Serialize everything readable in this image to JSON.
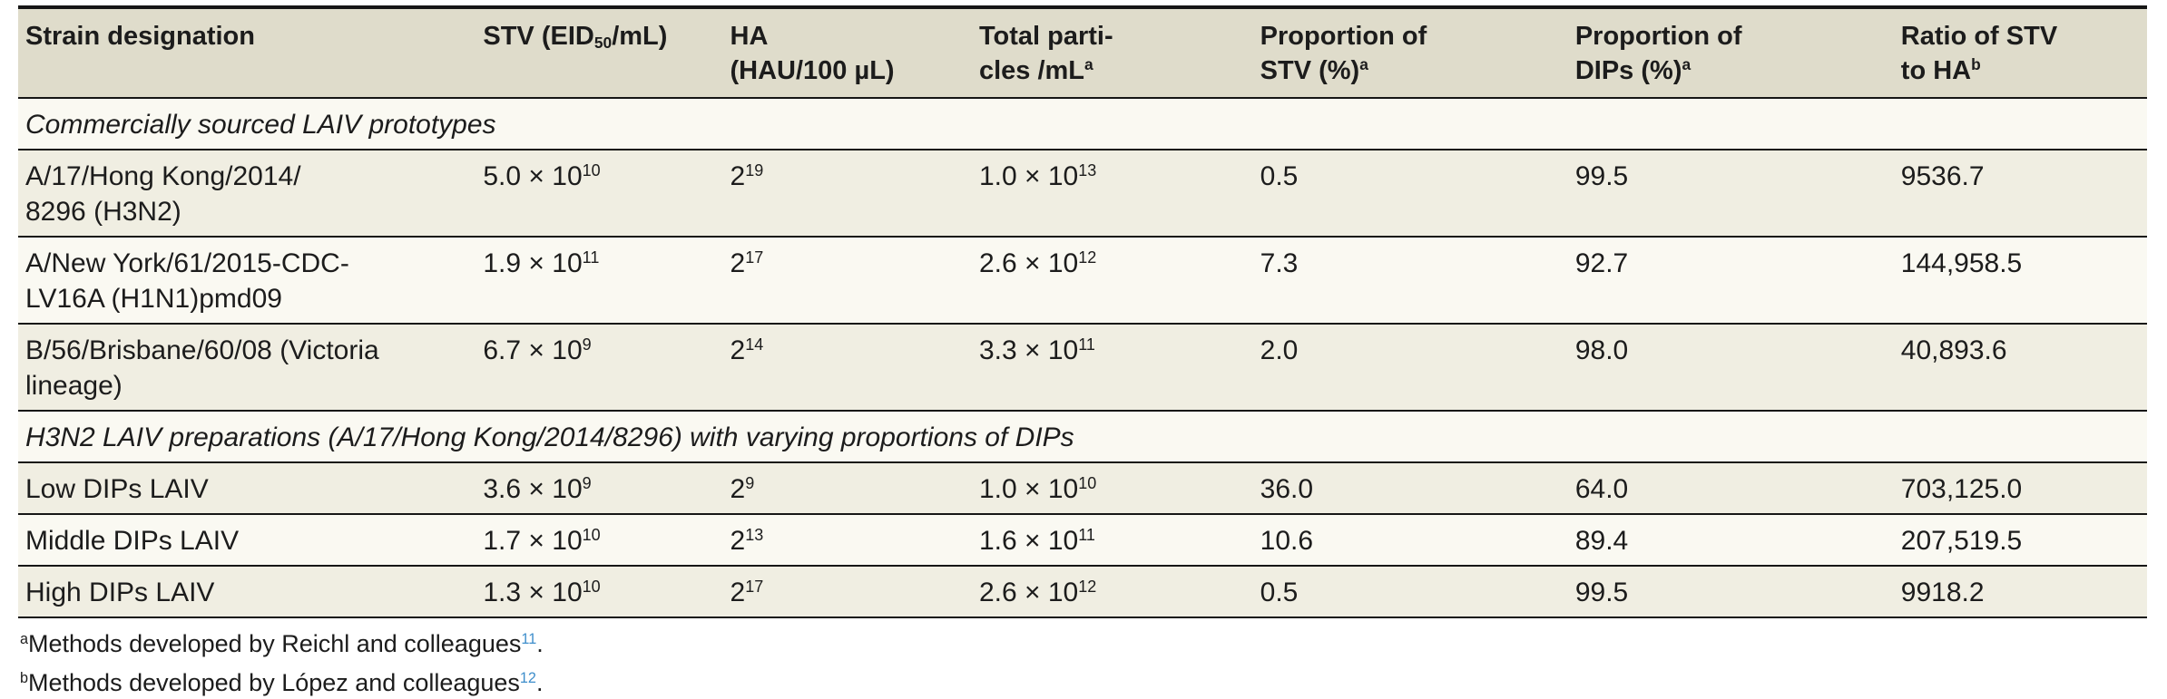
{
  "colors": {
    "header_bg": "#dfdccb",
    "row_shaded_bg": "#f0eee2",
    "row_plain_bg": "#faf9f2",
    "border": "#161616",
    "text": "#1c1c1c",
    "reference_link": "#3e8ecb"
  },
  "table": {
    "columns": [
      {
        "key": "strain-designation",
        "label": "Strain designation"
      },
      {
        "key": "stv",
        "label": "STV (EID~{50}/mL)"
      },
      {
        "key": "ha",
        "label": "HA\n(HAU/100 µL)"
      },
      {
        "key": "total-particles",
        "label": "Total parti-\ncles /mL^{a}"
      },
      {
        "key": "proportion-stv",
        "label": "Proportion of\nSTV (%)^{a}"
      },
      {
        "key": "proportion-dips",
        "label": "Proportion of\nDIPs (%)^{a}"
      },
      {
        "key": "ratio-stv-ha",
        "label": "Ratio of STV\nto HA^{b}"
      }
    ],
    "sections": [
      {
        "title": "Commercially sourced LAIV prototypes",
        "rows": [
          {
            "cells": [
              "A/17/Hong Kong/2014/\n8296 (H3N2)",
              "5.0 × 10^{10}",
              "2^{19}",
              "1.0 × 10^{13}",
              "0.5",
              "99.5",
              "9536.7"
            ]
          },
          {
            "cells": [
              "A/New York/61/2015-CDC-\nLV16A (H1N1)pmd09",
              "1.9 × 10^{11}",
              "2^{17}",
              "2.6 × 10^{12}",
              "7.3",
              "92.7",
              "144,958.5"
            ]
          },
          {
            "cells": [
              "B/56/Brisbane/60/08 (Victoria\nlineage)",
              "6.7 × 10^{9}",
              "2^{14}",
              "3.3 × 10^{11}",
              "2.0",
              "98.0",
              "40,893.6"
            ]
          }
        ]
      },
      {
        "title": "H3N2 LAIV preparations (A/17/Hong Kong/2014/8296) with varying proportions of DIPs",
        "rows": [
          {
            "cells": [
              "Low DIPs LAIV",
              "3.6 × 10^{9}",
              "2^{9}",
              "1.0 × 10^{10}",
              "36.0",
              "64.0",
              "703,125.0"
            ]
          },
          {
            "cells": [
              "Middle DIPs LAIV",
              "1.7 × 10^{10}",
              "2^{13}",
              "1.6 × 10^{11}",
              "10.6",
              "89.4",
              "207,519.5"
            ]
          },
          {
            "cells": [
              "High DIPs LAIV",
              "1.3 × 10^{10}",
              "2^{17}",
              "2.6 × 10^{12}",
              "0.5",
              "99.5",
              "9918.2"
            ]
          }
        ]
      }
    ]
  },
  "footnotes": [
    {
      "marker": "a",
      "text": "Methods developed by Reichl and colleagues",
      "reference": "11",
      "suffix": "."
    },
    {
      "marker": "b",
      "text": "Methods developed by López and colleagues",
      "reference": "12",
      "suffix": "."
    }
  ]
}
